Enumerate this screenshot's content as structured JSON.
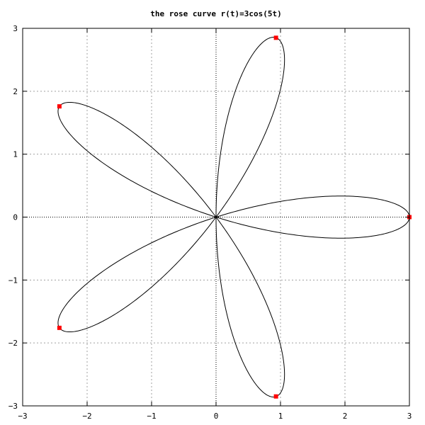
{
  "chart_data": {
    "type": "line",
    "title": "the rose curve r(t)=3cos(5t)",
    "xlabel": "",
    "ylabel": "",
    "xlim": [
      -3,
      3
    ],
    "ylim": [
      -3,
      3
    ],
    "xticks": [
      -3,
      -2,
      -1,
      0,
      1,
      2,
      3
    ],
    "yticks": [
      -3,
      -2,
      -1,
      0,
      1,
      2,
      3
    ],
    "xtick_labels": [
      "−3",
      "−2",
      "−1",
      "0",
      "1",
      "2",
      "3"
    ],
    "ytick_labels": [
      "−3",
      "−2",
      "−1",
      "0",
      "1",
      "2",
      "3"
    ],
    "grid": true,
    "zero_axes": true,
    "series": [
      {
        "kind": "curve",
        "equation": "r(t)=3cos(5t)",
        "amplitude": 3,
        "frequency": 5,
        "t_range": [
          0,
          3.14159265
        ],
        "color": "#000000"
      },
      {
        "kind": "points",
        "color": "#ff0000",
        "points": [
          {
            "x": 3.0,
            "y": 0.0
          },
          {
            "x": 0.93,
            "y": 2.85
          },
          {
            "x": -2.43,
            "y": 1.76
          },
          {
            "x": -2.43,
            "y": -1.76
          },
          {
            "x": 0.93,
            "y": -2.85
          }
        ]
      }
    ]
  }
}
